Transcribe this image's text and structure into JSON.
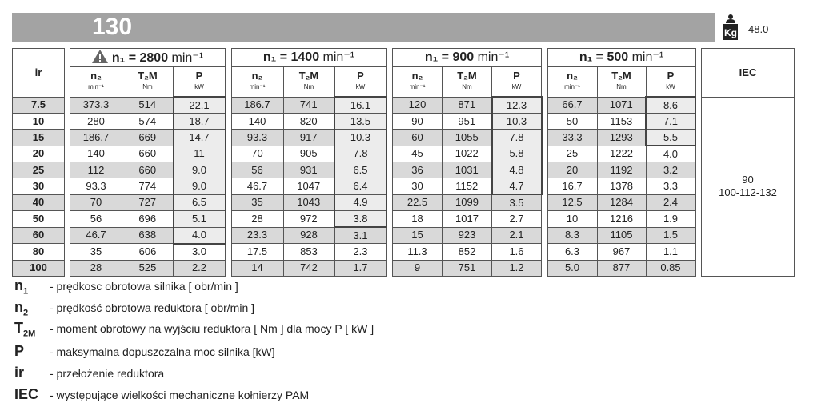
{
  "header": {
    "title": "130",
    "weight_icon": "kg-weight-icon",
    "weight": "48.0"
  },
  "table": {
    "ir_label": "ir",
    "iec_label": "IEC",
    "groups": [
      {
        "label": "n₁ = 2800 ",
        "unit": "min⁻¹",
        "warning": true
      },
      {
        "label": "n₁ = 1400 ",
        "unit": "min⁻¹",
        "warning": false
      },
      {
        "label": "n₁ = 900 ",
        "unit": "min⁻¹",
        "warning": false
      },
      {
        "label": "n₁ = 500 ",
        "unit": "min⁻¹",
        "warning": false
      }
    ],
    "subcols": [
      {
        "label": "n₂",
        "unit": "min⁻¹"
      },
      {
        "label": "T₂M",
        "unit": "Nm"
      },
      {
        "label": "P",
        "unit": "kW"
      }
    ],
    "ir": [
      "7.5",
      "10",
      "15",
      "20",
      "25",
      "30",
      "40",
      "50",
      "60",
      "80",
      "100"
    ],
    "data": [
      [
        [
          "373.3",
          "514",
          "22.1"
        ],
        [
          "186.7",
          "741",
          "16.1"
        ],
        [
          "120",
          "871",
          "12.3"
        ],
        [
          "66.7",
          "1071",
          "8.6"
        ]
      ],
      [
        [
          "280",
          "574",
          "18.7"
        ],
        [
          "140",
          "820",
          "13.5"
        ],
        [
          "90",
          "951",
          "10.3"
        ],
        [
          "50",
          "1153",
          "7.1"
        ]
      ],
      [
        [
          "186.7",
          "669",
          "14.7"
        ],
        [
          "93.3",
          "917",
          "10.3"
        ],
        [
          "60",
          "1055",
          "7.8"
        ],
        [
          "33.3",
          "1293",
          "5.5"
        ]
      ],
      [
        [
          "140",
          "660",
          "11"
        ],
        [
          "70",
          "905",
          "7.8"
        ],
        [
          "45",
          "1022",
          "5.8"
        ],
        [
          "25",
          "1222",
          "4.0"
        ]
      ],
      [
        [
          "112",
          "660",
          "9.0"
        ],
        [
          "56",
          "931",
          "6.5"
        ],
        [
          "36",
          "1031",
          "4.8"
        ],
        [
          "20",
          "1192",
          "3.2"
        ]
      ],
      [
        [
          "93.3",
          "774",
          "9.0"
        ],
        [
          "46.7",
          "1047",
          "6.4"
        ],
        [
          "30",
          "1152",
          "4.7"
        ],
        [
          "16.7",
          "1378",
          "3.3"
        ]
      ],
      [
        [
          "70",
          "727",
          "6.5"
        ],
        [
          "35",
          "1043",
          "4.9"
        ],
        [
          "22.5",
          "1099",
          "3.5"
        ],
        [
          "12.5",
          "1284",
          "2.4"
        ]
      ],
      [
        [
          "56",
          "696",
          "5.1"
        ],
        [
          "28",
          "972",
          "3.8"
        ],
        [
          "18",
          "1017",
          "2.7"
        ],
        [
          "10",
          "1216",
          "1.9"
        ]
      ],
      [
        [
          "46.7",
          "638",
          "4.0"
        ],
        [
          "23.3",
          "928",
          "3.1"
        ],
        [
          "15",
          "923",
          "2.1"
        ],
        [
          "8.3",
          "1105",
          "1.5"
        ]
      ],
      [
        [
          "35",
          "606",
          "3.0"
        ],
        [
          "17.5",
          "853",
          "2.3"
        ],
        [
          "11.3",
          "852",
          "1.6"
        ],
        [
          "6.3",
          "967",
          "1.1"
        ]
      ],
      [
        [
          "28",
          "525",
          "2.2"
        ],
        [
          "14",
          "742",
          "1.7"
        ],
        [
          "9",
          "751",
          "1.2"
        ],
        [
          "5.0",
          "877",
          "0.85"
        ]
      ]
    ],
    "boxed_rows_per_group": [
      9,
      8,
      6,
      3
    ],
    "iec_values": [
      "90",
      "100-112-132"
    ]
  },
  "legend": [
    {
      "symbol": "n",
      "sub": "1",
      "text": "- prędkosc obrotowa silnika [ obr/min ]"
    },
    {
      "symbol": "n",
      "sub": "2",
      "text": "- prędkość obrotowa reduktora [ obr/min ]"
    },
    {
      "symbol": "T",
      "sub": "2M",
      "text": "- moment obrotowy na wyjściu reduktora [ Nm ] dla mocy P  [ kW ]"
    },
    {
      "symbol": "P",
      "sub": "",
      "text": "- maksymalna dopuszczalna moc silnika [kW]"
    },
    {
      "symbol": "ir",
      "sub": "",
      "text": "- przełożenie reduktora"
    },
    {
      "symbol": "IEC",
      "sub": "",
      "text": "- występujące wielkości mechaniczne kołnierzy PAM"
    }
  ]
}
